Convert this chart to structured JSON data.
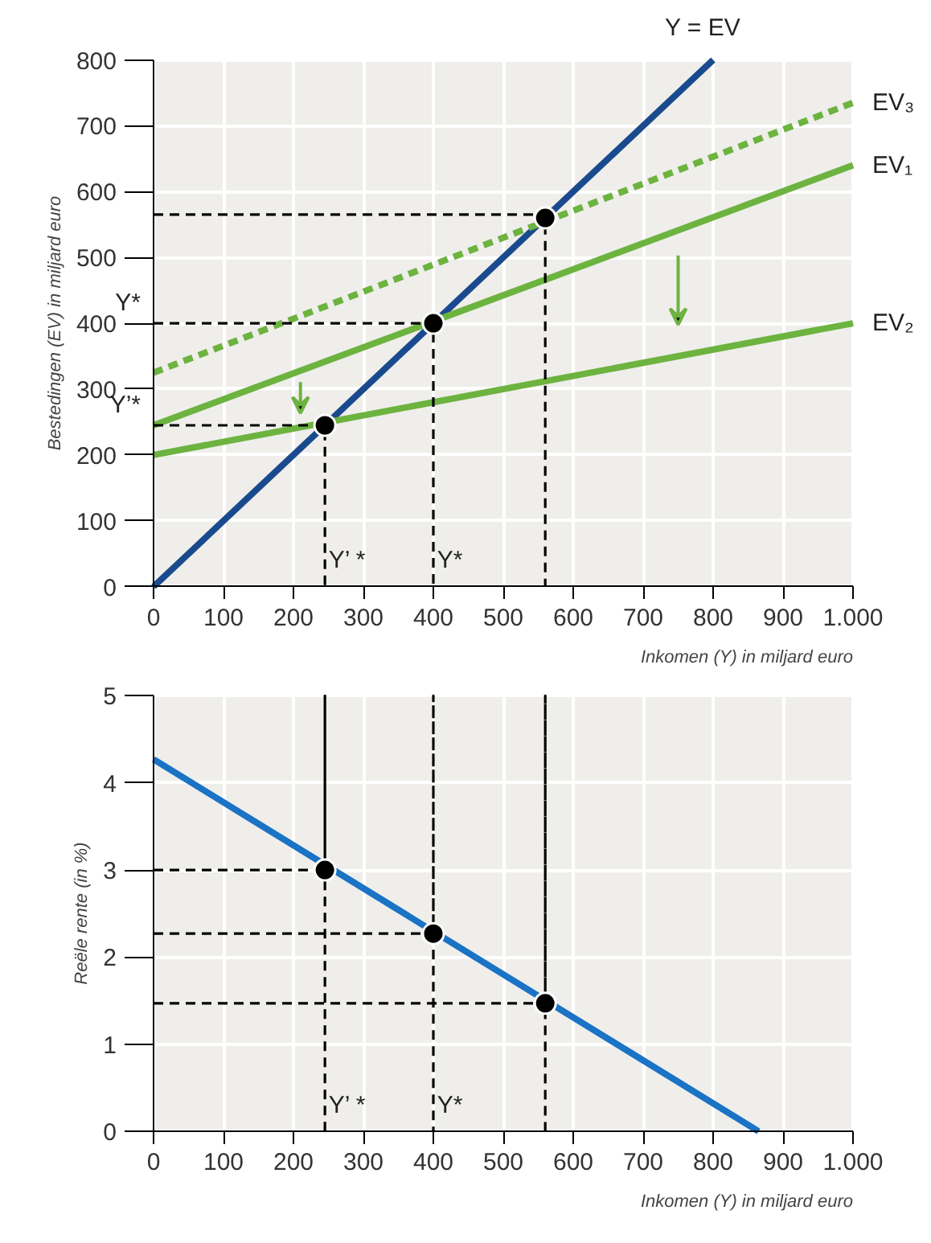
{
  "chart_data": [
    {
      "type": "line",
      "xlabel": "Inkomen (Y) in miljard euro",
      "ylabel": "Bestedingen (EV) in miljard euro",
      "xlim": [
        0,
        1000
      ],
      "ylim": [
        0,
        800
      ],
      "xticks": [
        0,
        100,
        200,
        300,
        400,
        500,
        600,
        700,
        800,
        900,
        {
          "value": 1000,
          "label": "1.000"
        }
      ],
      "yticks": [
        0,
        100,
        200,
        300,
        400,
        500,
        600,
        700,
        800
      ],
      "grid": true,
      "series": [
        {
          "name": "Y = EV",
          "color": "#1a4a8e",
          "x": [
            0,
            800
          ],
          "values": [
            0,
            800
          ]
        },
        {
          "name": "EV₃",
          "color": "#6cb33f",
          "line_style": "dashed",
          "x": [
            0,
            1000
          ],
          "values": [
            325,
            735
          ]
        },
        {
          "name": "EV₁",
          "color": "#6cb33f",
          "x": [
            0,
            1000
          ],
          "values": [
            245,
            640
          ]
        },
        {
          "name": "EV₂",
          "color": "#6cb33f",
          "x": [
            0,
            1000
          ],
          "values": [
            200,
            400
          ]
        },
        {
          "color": "#000000",
          "line_style": "dashed",
          "x": [
            0,
            245,
            245
          ],
          "values": [
            245,
            245,
            0
          ]
        },
        {
          "color": "#000000",
          "line_style": "dashed",
          "x": [
            0,
            400,
            400
          ],
          "values": [
            400,
            400,
            0
          ]
        },
        {
          "color": "#000000",
          "line_style": "dashed",
          "x": [
            0,
            560,
            560
          ],
          "values": [
            565,
            565,
            0
          ]
        },
        {
          "type": "scatter",
          "color": "#000000",
          "marker": "circle",
          "x": [
            245,
            400,
            560
          ],
          "values": [
            245,
            400,
            560
          ]
        }
      ],
      "annotations": [
        {
          "text": "Y*",
          "x": 0,
          "y": 400
        },
        {
          "text": "Y’*",
          "x": 0,
          "y": 245
        },
        {
          "text": "Y’ *",
          "x": 255,
          "y": 40
        },
        {
          "text": "Y*",
          "x": 410,
          "y": 40
        }
      ]
    },
    {
      "type": "line",
      "xlabel": "Inkomen (Y) in miljard euro",
      "ylabel": "Reële rente (in %)",
      "xlim": [
        0,
        1000
      ],
      "ylim": [
        0,
        5
      ],
      "xticks": [
        0,
        100,
        200,
        300,
        400,
        500,
        600,
        700,
        800,
        900,
        {
          "value": 1000,
          "label": "1.000"
        }
      ],
      "yticks": [
        0,
        1,
        2,
        3,
        4,
        5
      ],
      "grid": true,
      "series": [
        {
          "color": "#1a73c4",
          "x": [
            0,
            865
          ],
          "values": [
            4.27,
            0
          ]
        },
        {
          "color": "#000000",
          "line_style": "dashed",
          "x": [
            0,
            245,
            245,
            245
          ],
          "values": [
            3,
            3,
            5,
            0
          ]
        },
        {
          "color": "#000000",
          "line_style": "dashed",
          "x": [
            0,
            400,
            400,
            400
          ],
          "values": [
            2.27,
            2.27,
            5,
            0
          ]
        },
        {
          "color": "#000000",
          "line_style": "dashed",
          "x": [
            0,
            560,
            560,
            560
          ],
          "values": [
            1.47,
            1.47,
            5,
            0
          ]
        },
        {
          "type": "scatter",
          "color": "#000000",
          "marker": "circle",
          "x": [
            245,
            400,
            560
          ],
          "values": [
            3,
            2.27,
            1.47
          ]
        }
      ],
      "annotations": [
        {
          "text": "Y’ *",
          "x": 255,
          "y": 0.3
        },
        {
          "text": "Y*",
          "x": 410,
          "y": 0.3
        }
      ]
    }
  ]
}
